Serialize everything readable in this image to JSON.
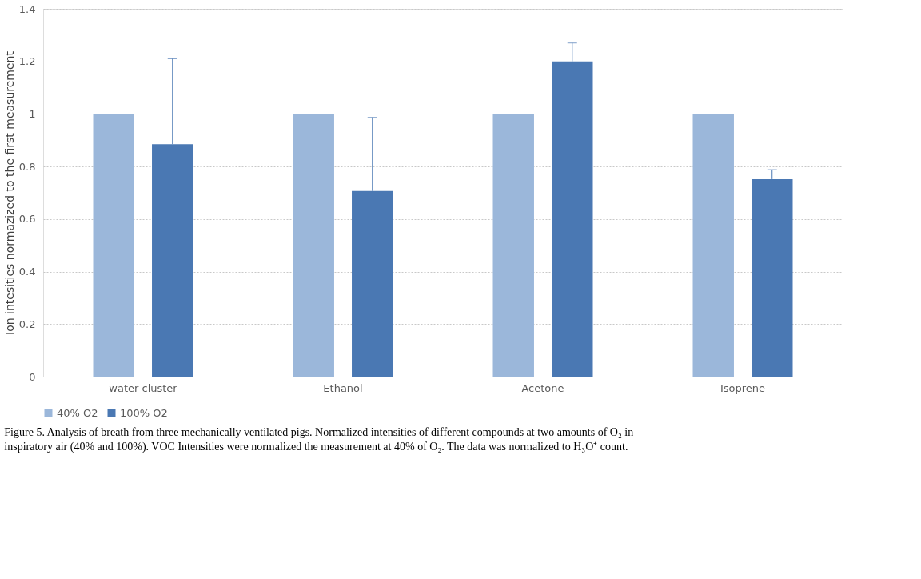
{
  "chart_data": {
    "type": "bar",
    "ylabel": "Ion intesities normazized to the first  measurement",
    "categories": [
      "water cluster",
      "Ethanol",
      "Acetone",
      "Isoprene"
    ],
    "series": [
      {
        "name": "40% O2",
        "color": "#9bb7da",
        "values": [
          1,
          1,
          1,
          1
        ]
      },
      {
        "name": "100% O2",
        "color": "#4a78b3",
        "values": [
          0.885,
          0.707,
          1.2,
          0.752
        ],
        "errors": [
          [
            0.885,
            1.21
          ],
          [
            0.707,
            0.987
          ],
          [
            1.2,
            1.27
          ],
          [
            0.752,
            0.788
          ]
        ]
      }
    ],
    "ylim": [
      0,
      1.4
    ],
    "yticks": [
      0,
      0.2,
      0.4,
      0.6,
      0.8,
      1,
      1.2,
      1.4
    ],
    "grid": "y",
    "legend": "bottom",
    "annotations": [
      "Figure 5. Analysis of breath from three mechanically ventilated pigs. Normalized intensities of different compounds at two amounts of O₂ in inspiratory air (40% and 100%). VOC Intensities were normalized the measurement at 40% of O₂. The data was normalized to H₃O⁺ count."
    ]
  }
}
